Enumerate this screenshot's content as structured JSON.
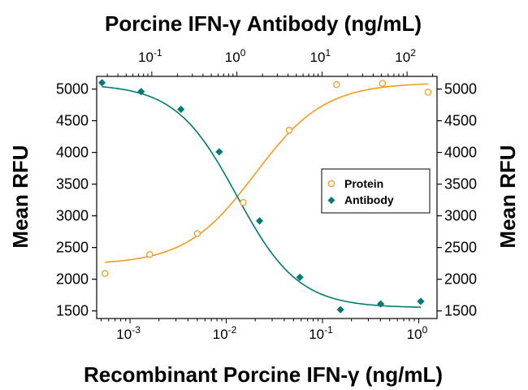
{
  "chart_data": {
    "type": "scatter",
    "title": "",
    "x_top_label": "Porcine IFN-γ Antibody (ng/mL)",
    "x_bottom_label": "Recombinant Porcine IFN-γ (ng/mL)",
    "y_left_label": "Mean RFU",
    "y_right_label": "Mean RFU",
    "x_bottom_scale": "log",
    "x_bottom_range": [
      0.00045,
      1.55
    ],
    "x_bottom_ticks": [
      {
        "value": 0.001,
        "base": "10",
        "exp": "-3"
      },
      {
        "value": 0.01,
        "base": "10",
        "exp": "-2"
      },
      {
        "value": 0.1,
        "base": "10",
        "exp": "-1"
      },
      {
        "value": 1,
        "base": "10",
        "exp": "0"
      }
    ],
    "x_top_scale": "log",
    "x_top_range": [
      0.0225,
      225
    ],
    "x_top_ticks": [
      {
        "value": 0.1,
        "base": "10",
        "exp": "-1"
      },
      {
        "value": 1,
        "base": "10",
        "exp": "0"
      },
      {
        "value": 10,
        "base": "10",
        "exp": "1"
      },
      {
        "value": 100,
        "base": "10",
        "exp": "2"
      }
    ],
    "y_range": [
      1380,
      5200
    ],
    "y_ticks": [
      "1500",
      "2000",
      "2500",
      "3000",
      "3500",
      "4000",
      "4500",
      "5000"
    ],
    "grid": false,
    "legend_position": "right-middle",
    "series": [
      {
        "name": "Protein",
        "marker": "open-circle",
        "color": "#F39C1F",
        "axis": "bottom",
        "points": [
          {
            "x": 0.00055,
            "y": 2090
          },
          {
            "x": 0.0016,
            "y": 2390
          },
          {
            "x": 0.005,
            "y": 2720
          },
          {
            "x": 0.015,
            "y": 3210
          },
          {
            "x": 0.045,
            "y": 4350
          },
          {
            "x": 0.14,
            "y": 5070
          },
          {
            "x": 0.42,
            "y": 5090
          },
          {
            "x": 1.25,
            "y": 4950
          }
        ],
        "fit": {
          "bottom": 2230,
          "top": 5100,
          "ec50": 0.02,
          "hill": 1.2
        }
      },
      {
        "name": "Antibody",
        "marker": "filled-diamond",
        "color": "#007A74",
        "axis": "top",
        "points": [
          {
            "x": 0.026,
            "y": 5100
          },
          {
            "x": 0.075,
            "y": 4960
          },
          {
            "x": 0.22,
            "y": 4680
          },
          {
            "x": 0.62,
            "y": 4010
          },
          {
            "x": 1.85,
            "y": 2920
          },
          {
            "x": 5.5,
            "y": 2030
          },
          {
            "x": 16.5,
            "y": 1520
          },
          {
            "x": 49,
            "y": 1610
          },
          {
            "x": 145,
            "y": 1650
          }
        ],
        "fit": {
          "bottom": 1550,
          "top": 5080,
          "ec50": 1.0,
          "hill": 1.2
        }
      }
    ]
  }
}
